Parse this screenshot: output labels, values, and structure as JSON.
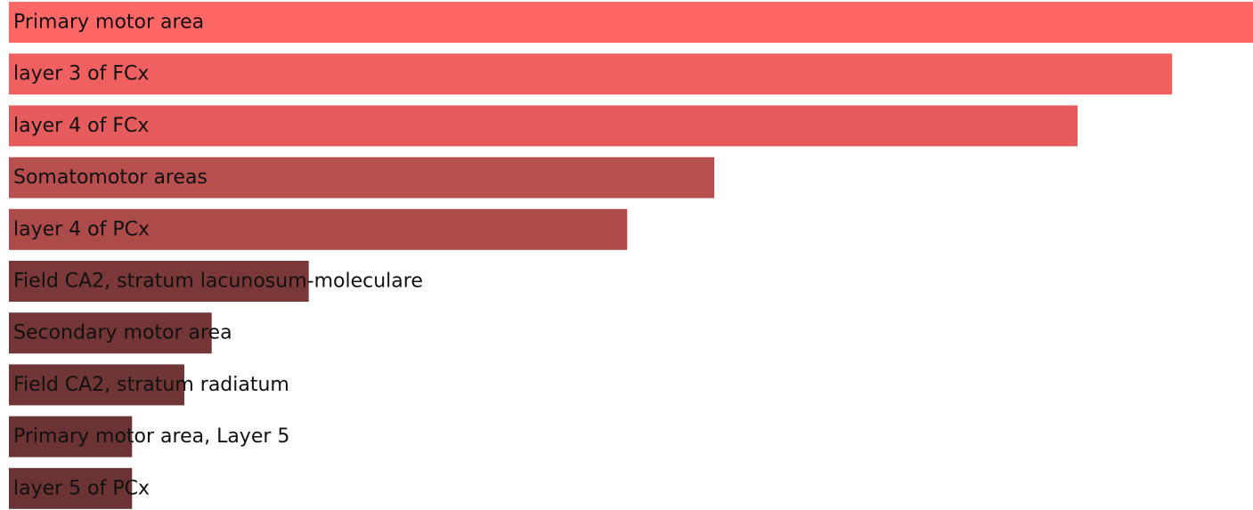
{
  "chart_data": {
    "type": "bar",
    "orientation": "horizontal",
    "title": "",
    "xlabel": "",
    "ylabel": "",
    "axes_visible": false,
    "grid": false,
    "legend": "none",
    "xlim": [
      0,
      1.0
    ],
    "categories": [
      "Primary motor area",
      "layer 3 of FCx",
      "layer 4 of FCx",
      "Somatomotor areas",
      "layer 4 of PCx",
      "Field CA2, stratum lacunosum-moleculare",
      "Secondary motor area",
      "Field CA2, stratum radiatum",
      "Primary motor area, Layer 5",
      "layer 5 of PCx"
    ],
    "values": [
      1.0,
      0.935,
      0.859,
      0.567,
      0.497,
      0.241,
      0.163,
      0.141,
      0.099,
      0.099
    ],
    "colors": [
      "#ff6666",
      "#f06060",
      "#e65c5c",
      "#b84f4f",
      "#ad4a4a",
      "#7a3838",
      "#733535",
      "#703535",
      "#6b3333",
      "#6b3333"
    ]
  }
}
